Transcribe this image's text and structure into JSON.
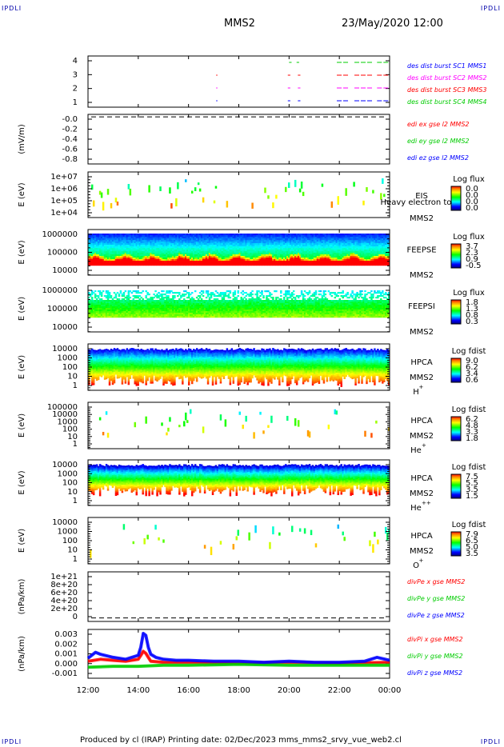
{
  "corner_labels": {
    "top_left": "IPDLI",
    "top_right": "IPDLI",
    "bottom_left": "IPDLI",
    "bottom_right": "IPDLI"
  },
  "header": {
    "spacecraft": "MMS2",
    "datetime": "23/May/2020 12:00"
  },
  "footer": {
    "text": "Produced by cl (IRAP)   Printing date: 02/Dec/2023   mms_mms2_srvy_vue_web2.cl"
  },
  "colors": {
    "red": "#ff0000",
    "green": "#00cc00",
    "blue": "#0000ff",
    "magenta": "#ff00ff",
    "black": "#000000"
  },
  "chart_data": {
    "type": "line",
    "x_ticks": [
      "12:00",
      "14:00",
      "16:00",
      "18:00",
      "20:00",
      "22:00",
      "00:00"
    ],
    "xlim_hours": [
      12,
      24
    ],
    "panels": [
      {
        "id": "burst",
        "type": "line",
        "yticks": [
          "4",
          "3",
          "2",
          "1"
        ],
        "ylim": [
          0.5,
          4.5
        ],
        "legend": [
          {
            "text": "des dist burst SC1 MMS1",
            "color": "#0000ff"
          },
          {
            "text": "des dist burst SC2 MMS2",
            "color": "#ff00ff"
          },
          {
            "text": "des dist burst SC3 MMS3",
            "color": "#ff0000"
          },
          {
            "text": "des dist burst SC4 MMS4",
            "color": "#00cc00"
          }
        ],
        "series": [
          {
            "name": "des dist burst SC1 MMS1",
            "color": "#0000ff",
            "y": 1,
            "intervals": [
              [
                17.1,
                17.15
              ],
              [
                19.95,
                20.05
              ],
              [
                20.35,
                20.45
              ],
              [
                21.9,
                22.4
              ],
              [
                22.6,
                23.3
              ],
              [
                23.5,
                24
              ]
            ]
          },
          {
            "name": "des dist burst SC2 MMS2",
            "color": "#ff00ff",
            "y": 2,
            "intervals": [
              [
                17.1,
                17.15
              ],
              [
                19.95,
                20.05
              ],
              [
                20.35,
                20.45
              ],
              [
                21.9,
                22.4
              ],
              [
                22.6,
                23.3
              ],
              [
                23.5,
                24
              ]
            ]
          },
          {
            "name": "des dist burst SC3 MMS3",
            "color": "#ff0000",
            "y": 3,
            "intervals": [
              [
                17.1,
                17.15
              ],
              [
                19.95,
                20.05
              ],
              [
                20.35,
                20.45
              ],
              [
                21.9,
                22.4
              ],
              [
                22.6,
                23.3
              ],
              [
                23.5,
                24
              ]
            ]
          },
          {
            "name": "des dist burst SC4 MMS4",
            "color": "#00cc00",
            "y": 4,
            "intervals": [
              [
                20.0,
                20.1
              ],
              [
                20.3,
                20.4
              ],
              [
                21.9,
                22.4
              ],
              [
                22.6,
                23.3
              ],
              [
                23.5,
                24
              ]
            ]
          }
        ]
      },
      {
        "id": "edi",
        "type": "line",
        "ylabel": "(mV/m)",
        "yticks": [
          "-0.0",
          "-0.2",
          "-0.4",
          "-0.6",
          "-0.8"
        ],
        "ylim": [
          -0.95,
          0.05
        ],
        "legend": [
          {
            "text": "edi ex gse l2 MMS2",
            "color": "#ff0000"
          },
          {
            "text": "edi ey gse l2 MMS2",
            "color": "#00cc00"
          },
          {
            "text": "edi ez gse l2 MMS2",
            "color": "#0000ff"
          }
        ],
        "dashed_zero": true
      },
      {
        "id": "eis",
        "type": "heatmap",
        "ylabel": "E (eV)",
        "yticks": [
          "1e+07",
          "1e+06",
          "1e+05",
          "1e+04"
        ],
        "label_lines": [
          "EIS",
          "MMS2"
        ],
        "overlay_text": "Heavy electron to",
        "colorbar_title": "Log flux",
        "colorbar_ticks": [
          "0.0",
          "0.0",
          "0.0",
          "0.0"
        ]
      },
      {
        "id": "feepse",
        "type": "heatmap",
        "ylabel": "E (eV)",
        "yticks": [
          "1000000",
          "100000",
          "10000"
        ],
        "label_lines": [
          "FEEPSE",
          "MMS2"
        ],
        "colorbar_title": "Log flux",
        "colorbar_ticks": [
          "3.7",
          "2.3",
          "0.9",
          "-0.5"
        ]
      },
      {
        "id": "feepsi",
        "type": "heatmap",
        "ylabel": "E (eV)",
        "yticks": [
          "1000000",
          "100000",
          "10000"
        ],
        "label_lines": [
          "FEEPSI",
          "MMS2"
        ],
        "colorbar_title": "Log flux",
        "colorbar_ticks": [
          "1.8",
          "1.3",
          "0.8",
          "0.3"
        ]
      },
      {
        "id": "hpca_h",
        "type": "heatmap",
        "ylabel": "E (eV)",
        "yticks": [
          "10000",
          "1000",
          "100",
          "10",
          "1"
        ],
        "label_lines": [
          "HPCA",
          "MMS2"
        ],
        "species": "H",
        "species_sup": "+",
        "colorbar_title": "Log fdist",
        "colorbar_ticks": [
          "9.0",
          "6.2",
          "3.4",
          "0.6"
        ]
      },
      {
        "id": "hpca_he",
        "type": "heatmap",
        "ylabel": "E (eV)",
        "yticks": [
          "100000",
          "10000",
          "1000",
          "100",
          "10",
          "1"
        ],
        "label_lines": [
          "HPCA",
          "MMS2"
        ],
        "species": "He",
        "species_sup": "+",
        "colorbar_title": "Log fdist",
        "colorbar_ticks": [
          "6.2",
          "4.8",
          "3.3",
          "1.8"
        ]
      },
      {
        "id": "hpca_hepp",
        "type": "heatmap",
        "ylabel": "E (eV)",
        "yticks": [
          "10000",
          "1000",
          "100",
          "10",
          "1"
        ],
        "label_lines": [
          "HPCA",
          "MMS2"
        ],
        "species": "He",
        "species_sup": "++",
        "colorbar_title": "Log fdist",
        "colorbar_ticks": [
          "7.5",
          "5.5",
          "3.5",
          "1.5"
        ]
      },
      {
        "id": "hpca_o",
        "type": "heatmap",
        "ylabel": "E (eV)",
        "yticks": [
          "10000",
          "1000",
          "100",
          "10",
          "1"
        ],
        "label_lines": [
          "HPCA",
          "MMS2"
        ],
        "species": "O",
        "species_sup": "+",
        "colorbar_title": "Log fdist",
        "colorbar_ticks": [
          "7.9",
          "6.5",
          "5.0",
          "3.5"
        ]
      },
      {
        "id": "divpe",
        "type": "line",
        "ylabel": "(nPa/km)",
        "yticks": [
          "1e+21",
          "8e+20",
          "6e+20",
          "4e+20",
          "2e+20",
          "0"
        ],
        "ylim": [
          -8e+19,
          1.05e+21
        ],
        "legend": [
          {
            "text": "divPe x gse MMS2",
            "color": "#ff0000"
          },
          {
            "text": "divPe y gse MMS2",
            "color": "#00cc00"
          },
          {
            "text": "divPe z gse MMS2",
            "color": "#0000ff"
          }
        ],
        "dashed_zero": true
      },
      {
        "id": "divpi",
        "type": "line",
        "ylabel": "(nPa/km)",
        "yticks": [
          "0.003",
          "0.002",
          "0.001",
          "0.000",
          "-0.001"
        ],
        "ylim": [
          -0.0015,
          0.0034
        ],
        "legend": [
          {
            "text": "divPi x gse MMS2",
            "color": "#ff0000"
          },
          {
            "text": "divPi y gse MMS2",
            "color": "#00cc00"
          },
          {
            "text": "divPi z gse MMS2",
            "color": "#0000ff"
          }
        ],
        "series": [
          {
            "name": "divPi x gse MMS2",
            "color": "#ff0000",
            "x": [
              12,
              12.5,
              13,
              13.5,
              14,
              14.1,
              14.2,
              14.3,
              14.4,
              14.5,
              15,
              16,
              18,
              20,
              22,
              24
            ],
            "y": [
              0.0002,
              0.0004,
              0.0003,
              0.0002,
              0.0004,
              0.0008,
              0.0012,
              0.001,
              0.0006,
              0.0002,
              0.0001,
              0.0001,
              0.0,
              0.0001,
              0.0,
              0.0001
            ]
          },
          {
            "name": "divPi y gse MMS2",
            "color": "#00cc00",
            "x": [
              12,
              13,
              14,
              15,
              16,
              18,
              20,
              22,
              24
            ],
            "y": [
              -0.0004,
              -0.0003,
              -0.0003,
              -0.0002,
              -0.0002,
              -0.0001,
              -0.0002,
              -0.0002,
              -0.0002
            ]
          },
          {
            "name": "divPi z gse MMS2",
            "color": "#0000ff",
            "x": [
              12,
              12.3,
              12.5,
              13,
              13.5,
              14,
              14.1,
              14.2,
              14.3,
              14.4,
              14.5,
              14.7,
              15,
              15.5,
              16,
              17,
              18,
              19,
              20,
              21,
              22,
              23,
              23.5,
              24
            ],
            "y": [
              0.0005,
              0.0011,
              0.0009,
              0.0006,
              0.0004,
              0.0008,
              0.0016,
              0.003,
              0.0028,
              0.0016,
              0.0009,
              0.0006,
              0.0004,
              0.0003,
              0.0003,
              0.0002,
              0.0002,
              0.0001,
              0.0002,
              0.0001,
              0.0001,
              0.0002,
              0.0006,
              0.0003
            ]
          }
        ]
      }
    ]
  }
}
